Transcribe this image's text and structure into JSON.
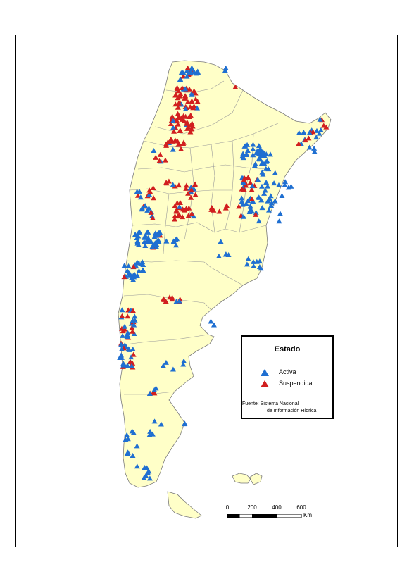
{
  "legend": {
    "title": "Estado",
    "items": [
      {
        "label": "Activa",
        "color": "#1f6fd1"
      },
      {
        "label": "Suspendida",
        "color": "#d11f1f"
      }
    ],
    "source_line1": "Fuente: Sistema Nacional",
    "source_line2": "de Información Hídrica"
  },
  "scale": {
    "ticks": [
      "0",
      "200",
      "400",
      "600"
    ],
    "unit": "Km"
  },
  "colors": {
    "land": "#ffffc8",
    "border": "#9a9a9a",
    "active": "#1f6fd1",
    "suspended": "#d11f1f"
  }
}
